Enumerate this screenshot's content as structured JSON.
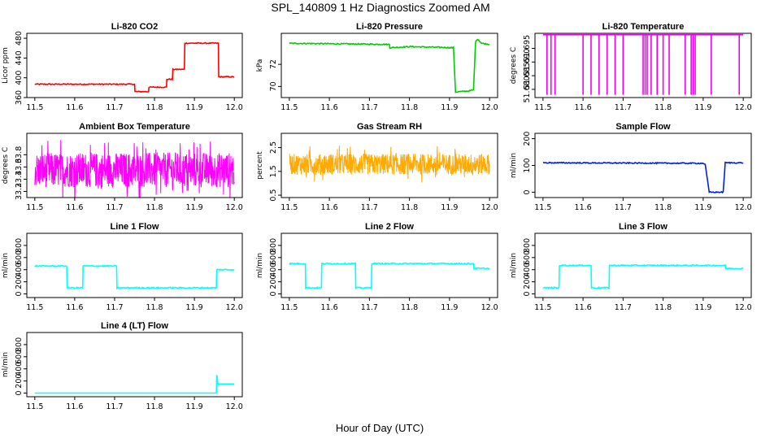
{
  "title": "SPL_140809 1 Hz Diagnostics Zoomed AM",
  "xlabel": "Hour of Day (UTC)",
  "chart_data": [
    {
      "type": "line",
      "title": "Li-820 CO2",
      "ylabel": "Licor ppm",
      "color": "#ff0000",
      "xlim": [
        11.5,
        12.0
      ],
      "ylim": [
        360,
        490
      ],
      "yticks": [
        360,
        400,
        440,
        480
      ],
      "xticks": [
        11.5,
        11.6,
        11.7,
        11.8,
        11.9,
        12.0
      ],
      "series": [
        {
          "name": "CO2",
          "noise": 1,
          "points": [
            [
              11.5,
              387
            ],
            [
              11.75,
              387
            ],
            [
              11.751,
              372
            ],
            [
              11.785,
              372
            ],
            [
              11.786,
              381
            ],
            [
              11.83,
              381
            ],
            [
              11.831,
              397
            ],
            [
              11.845,
              397
            ],
            [
              11.846,
              417
            ],
            [
              11.875,
              417
            ],
            [
              11.876,
              470
            ],
            [
              11.96,
              470
            ],
            [
              11.961,
              402
            ],
            [
              12.0,
              402
            ]
          ]
        }
      ]
    },
    {
      "type": "line",
      "title": "Li-820 Pressure",
      "ylabel": "kPa",
      "color": "#00cc00",
      "xlim": [
        11.5,
        12.0
      ],
      "ylim": [
        69.0,
        74.8
      ],
      "yticks": [
        70,
        72
      ],
      "xticks": [
        11.5,
        11.6,
        11.7,
        11.8,
        11.9,
        12.0
      ],
      "series": [
        {
          "name": "Pressure",
          "noise": 0.05,
          "points": [
            [
              11.5,
              73.9
            ],
            [
              11.75,
              73.8
            ],
            [
              11.751,
              73.5
            ],
            [
              11.8,
              73.6
            ],
            [
              11.91,
              73.5
            ],
            [
              11.915,
              69.5
            ],
            [
              11.95,
              69.6
            ],
            [
              11.96,
              69.7
            ],
            [
              11.965,
              74.0
            ],
            [
              11.97,
              74.3
            ],
            [
              11.98,
              73.9
            ],
            [
              12.0,
              73.8
            ]
          ]
        }
      ]
    },
    {
      "type": "line",
      "title": "Li-820 Temperature",
      "ylabel": "degrees C",
      "color": "#ee00ee",
      "xlim": [
        11.5,
        12.0
      ],
      "ylim": [
        51.677,
        51.7005
      ],
      "yticks": [
        51.68,
        51.685,
        51.69,
        51.695
      ],
      "xticks": [
        11.5,
        11.6,
        11.7,
        11.8,
        11.9,
        12.0
      ],
      "baseline": 51.7,
      "low": 51.678,
      "spikes": [
        11.51,
        11.52,
        11.53,
        11.6,
        11.62,
        11.64,
        11.66,
        11.68,
        11.7,
        11.75,
        11.755,
        11.76,
        11.77,
        11.785,
        11.8,
        11.815,
        11.855,
        11.87,
        11.875,
        11.88,
        11.92,
        11.99
      ]
    },
    {
      "type": "line",
      "title": "Ambient Box Temperature",
      "ylabel": "degrees C",
      "color": "#ff00ff",
      "xlim": [
        11.5,
        12.0
      ],
      "ylim": [
        33.1,
        34.15
      ],
      "yticks": [
        33.2,
        33.4,
        33.6,
        33.8
      ],
      "xticks": [
        11.5,
        11.6,
        11.7,
        11.8,
        11.9,
        12.0
      ],
      "band": {
        "center": 33.55,
        "low": 33.3,
        "high": 33.95
      }
    },
    {
      "type": "line",
      "title": "Gas Stream RH",
      "ylabel": "percent",
      "color": "#ffaa00",
      "xlim": [
        11.5,
        12.0
      ],
      "ylim": [
        0.4,
        3.1
      ],
      "yticks": [
        0.5,
        1.5,
        2.5
      ],
      "xticks": [
        11.5,
        11.6,
        11.7,
        11.8,
        11.9,
        12.0
      ],
      "band": {
        "center": 1.8,
        "low": 1.3,
        "high": 2.3
      }
    },
    {
      "type": "line",
      "title": "Sample Flow",
      "ylabel": "ml/min",
      "color": "#0022dd",
      "xlim": [
        11.5,
        12.0
      ],
      "ylim": [
        -20,
        220
      ],
      "yticks": [
        0,
        100,
        200
      ],
      "xticks": [
        11.5,
        11.6,
        11.7,
        11.8,
        11.9,
        12.0
      ],
      "series": [
        {
          "name": "Sample Flow",
          "noise": 2,
          "points": [
            [
              11.5,
              110
            ],
            [
              11.9,
              108
            ],
            [
              11.905,
              105
            ],
            [
              11.915,
              0
            ],
            [
              11.95,
              0
            ],
            [
              11.955,
              110
            ],
            [
              12.0,
              110
            ]
          ]
        }
      ]
    },
    {
      "type": "line",
      "title": "Line 1 Flow",
      "ylabel": "ml/min",
      "color": "#00ffff",
      "xlim": [
        11.5,
        12.0
      ],
      "ylim": [
        -60,
        1000
      ],
      "yticks": [
        0,
        200,
        400,
        600,
        800
      ],
      "xticks": [
        11.5,
        11.6,
        11.7,
        11.8,
        11.9,
        12.0
      ],
      "series": [
        {
          "name": "Line 1",
          "noise": 10,
          "points": [
            [
              11.5,
              460
            ],
            [
              11.58,
              460
            ],
            [
              11.581,
              100
            ],
            [
              11.62,
              100
            ],
            [
              11.621,
              460
            ],
            [
              11.705,
              460
            ],
            [
              11.706,
              100
            ],
            [
              11.955,
              100
            ],
            [
              11.956,
              400
            ],
            [
              12.0,
              400
            ]
          ]
        }
      ]
    },
    {
      "type": "line",
      "title": "Line 2 Flow",
      "ylabel": "ml/min",
      "color": "#00ffff",
      "xlim": [
        11.5,
        12.0
      ],
      "ylim": [
        -60,
        1000
      ],
      "yticks": [
        0,
        200,
        400,
        600,
        800
      ],
      "xticks": [
        11.5,
        11.6,
        11.7,
        11.8,
        11.9,
        12.0
      ],
      "series": [
        {
          "name": "Line 2",
          "noise": 10,
          "points": [
            [
              11.5,
              500
            ],
            [
              11.54,
              500
            ],
            [
              11.541,
              100
            ],
            [
              11.58,
              100
            ],
            [
              11.581,
              500
            ],
            [
              11.665,
              500
            ],
            [
              11.666,
              100
            ],
            [
              11.705,
              100
            ],
            [
              11.706,
              500
            ],
            [
              11.96,
              500
            ],
            [
              11.961,
              420
            ],
            [
              12.0,
              420
            ]
          ]
        }
      ]
    },
    {
      "type": "line",
      "title": "Line 3 Flow",
      "ylabel": "ml/min",
      "color": "#00ffff",
      "xlim": [
        11.5,
        12.0
      ],
      "ylim": [
        -60,
        1000
      ],
      "yticks": [
        0,
        200,
        400,
        600,
        800
      ],
      "xticks": [
        11.5,
        11.6,
        11.7,
        11.8,
        11.9,
        12.0
      ],
      "series": [
        {
          "name": "Line 3",
          "noise": 10,
          "points": [
            [
              11.5,
              100
            ],
            [
              11.54,
              100
            ],
            [
              11.541,
              470
            ],
            [
              11.62,
              470
            ],
            [
              11.621,
              100
            ],
            [
              11.665,
              100
            ],
            [
              11.666,
              470
            ],
            [
              11.955,
              470
            ],
            [
              11.956,
              420
            ],
            [
              12.0,
              420
            ]
          ]
        }
      ]
    },
    {
      "type": "line",
      "title": "Line 4 (LT) Flow",
      "ylabel": "ml/min",
      "color": "#00ffff",
      "xlim": [
        11.5,
        12.0
      ],
      "ylim": [
        -60,
        1000
      ],
      "yticks": [
        0,
        200,
        400,
        600,
        800
      ],
      "xticks": [
        11.5,
        11.6,
        11.7,
        11.8,
        11.9,
        12.0
      ],
      "series": [
        {
          "name": "Line 4",
          "noise": 0,
          "points": [
            [
              11.5,
              0
            ],
            [
              11.955,
              0
            ],
            [
              11.956,
              300
            ],
            [
              11.959,
              150
            ],
            [
              12.0,
              150
            ]
          ]
        }
      ]
    }
  ]
}
